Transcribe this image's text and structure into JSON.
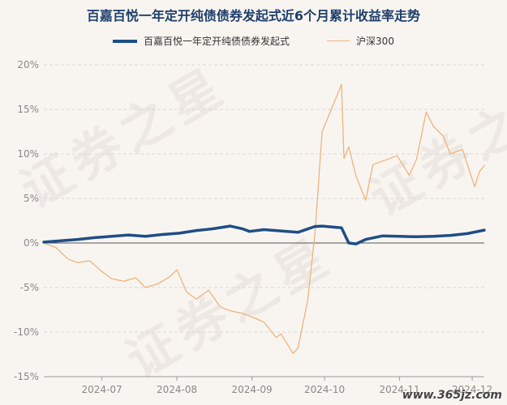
{
  "chart_data": {
    "type": "line",
    "title": "百嘉百悦一年定开纯债债券发起式近6个月累计收益率走势",
    "xlabel": "",
    "ylabel": "",
    "ylim": [
      -15,
      20
    ],
    "yticks": [
      "20%",
      "15%",
      "10%",
      "5%",
      "0%",
      "-5%",
      "-10%",
      "-15%"
    ],
    "ytick_values": [
      20,
      15,
      10,
      5,
      0,
      -5,
      -10,
      -15
    ],
    "xticks": [
      "2024-07",
      "2024-08",
      "2024-09",
      "2024-10",
      "2024-11",
      "2024-12"
    ],
    "xtick_dates": [
      "2024-07-01",
      "2024-08-01",
      "2024-09-01",
      "2024-10-01",
      "2024-11-01",
      "2024-12-01"
    ],
    "x_range": [
      "2024-06-07",
      "2024-12-06"
    ],
    "grid": "horizontal",
    "legend_position": "top",
    "series": [
      {
        "name": "百嘉百悦一年定开纯债债券发起式",
        "color": "#1f4e84",
        "points": [
          [
            "2024-06-07",
            0.1
          ],
          [
            "2024-06-14",
            0.25
          ],
          [
            "2024-06-21",
            0.4
          ],
          [
            "2024-06-28",
            0.6
          ],
          [
            "2024-07-05",
            0.75
          ],
          [
            "2024-07-12",
            0.9
          ],
          [
            "2024-07-19",
            0.75
          ],
          [
            "2024-07-26",
            0.95
          ],
          [
            "2024-08-02",
            1.1
          ],
          [
            "2024-08-09",
            1.4
          ],
          [
            "2024-08-16",
            1.6
          ],
          [
            "2024-08-23",
            1.9
          ],
          [
            "2024-08-28",
            1.6
          ],
          [
            "2024-08-31",
            1.3
          ],
          [
            "2024-09-06",
            1.5
          ],
          [
            "2024-09-13",
            1.35
          ],
          [
            "2024-09-20",
            1.2
          ],
          [
            "2024-09-27",
            1.85
          ],
          [
            "2024-09-30",
            1.9
          ],
          [
            "2024-10-08",
            1.7
          ],
          [
            "2024-10-11",
            0.0
          ],
          [
            "2024-10-14",
            -0.1
          ],
          [
            "2024-10-18",
            0.4
          ],
          [
            "2024-10-25",
            0.8
          ],
          [
            "2024-11-01",
            0.75
          ],
          [
            "2024-11-08",
            0.7
          ],
          [
            "2024-11-15",
            0.75
          ],
          [
            "2024-11-22",
            0.85
          ],
          [
            "2024-11-29",
            1.05
          ],
          [
            "2024-12-06",
            1.45
          ]
        ]
      },
      {
        "name": "沪深300",
        "color": "#f0b27a",
        "points": [
          [
            "2024-06-07",
            0.0
          ],
          [
            "2024-06-12",
            -0.5
          ],
          [
            "2024-06-17",
            -1.8
          ],
          [
            "2024-06-21",
            -2.2
          ],
          [
            "2024-06-26",
            -2.0
          ],
          [
            "2024-07-01",
            -3.2
          ],
          [
            "2024-07-05",
            -4.0
          ],
          [
            "2024-07-10",
            -4.3
          ],
          [
            "2024-07-15",
            -3.9
          ],
          [
            "2024-07-19",
            -5.0
          ],
          [
            "2024-07-24",
            -4.6
          ],
          [
            "2024-07-29",
            -3.8
          ],
          [
            "2024-08-01",
            -3.0
          ],
          [
            "2024-08-05",
            -5.5
          ],
          [
            "2024-08-09",
            -6.3
          ],
          [
            "2024-08-14",
            -5.3
          ],
          [
            "2024-08-19",
            -7.2
          ],
          [
            "2024-08-23",
            -7.6
          ],
          [
            "2024-08-28",
            -7.9
          ],
          [
            "2024-09-02",
            -8.4
          ],
          [
            "2024-09-06",
            -8.9
          ],
          [
            "2024-09-11",
            -10.6
          ],
          [
            "2024-09-13",
            -10.2
          ],
          [
            "2024-09-18",
            -12.4
          ],
          [
            "2024-09-20",
            -11.8
          ],
          [
            "2024-09-24",
            -6.5
          ],
          [
            "2024-09-27",
            1.0
          ],
          [
            "2024-09-30",
            12.5
          ],
          [
            "2024-10-08",
            17.8
          ],
          [
            "2024-10-09",
            9.5
          ],
          [
            "2024-10-11",
            10.8
          ],
          [
            "2024-10-14",
            7.5
          ],
          [
            "2024-10-18",
            4.8
          ],
          [
            "2024-10-21",
            8.8
          ],
          [
            "2024-10-25",
            9.2
          ],
          [
            "2024-10-31",
            9.8
          ],
          [
            "2024-11-05",
            7.6
          ],
          [
            "2024-11-08",
            9.4
          ],
          [
            "2024-11-12",
            14.7
          ],
          [
            "2024-11-15",
            13.1
          ],
          [
            "2024-11-19",
            12.0
          ],
          [
            "2024-11-22",
            10.0
          ],
          [
            "2024-11-27",
            10.5
          ],
          [
            "2024-12-02",
            6.3
          ],
          [
            "2024-12-04",
            8.0
          ],
          [
            "2024-12-06",
            8.7
          ]
        ]
      }
    ]
  },
  "watermark": "证券之星",
  "site_label": "www.365jz.com"
}
